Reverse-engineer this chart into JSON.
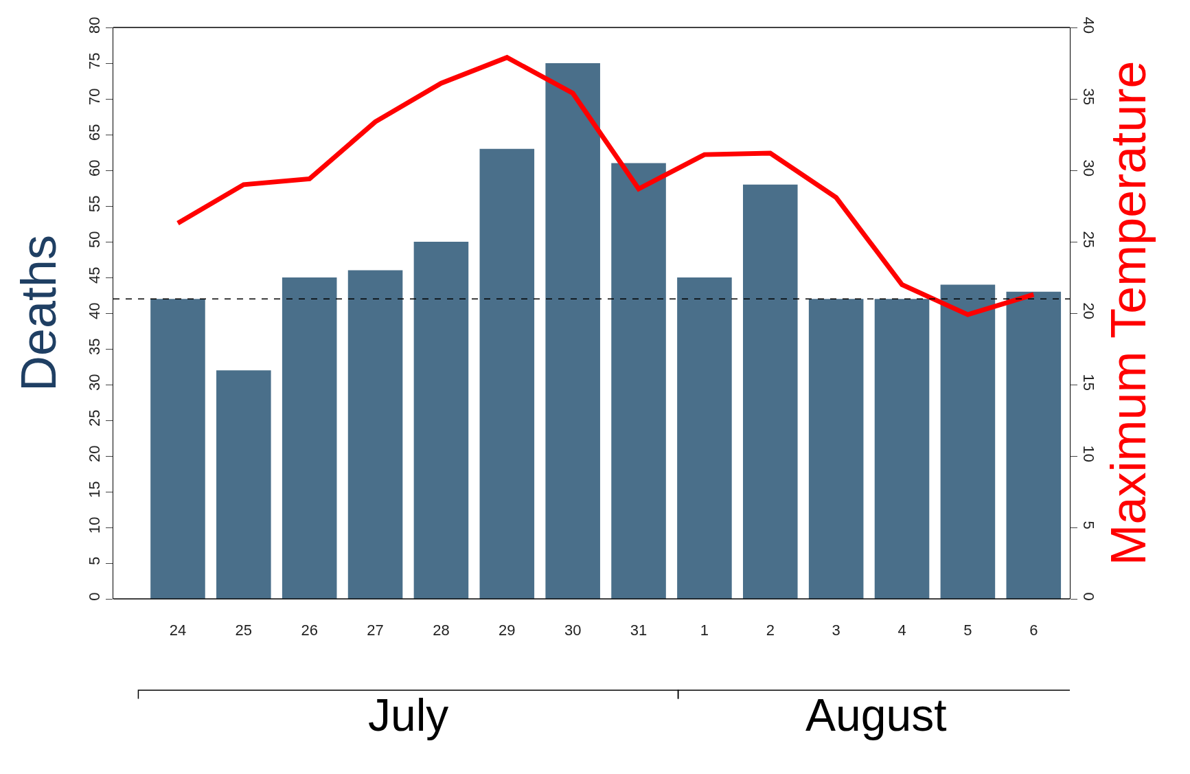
{
  "chart_data": {
    "type": "bar",
    "ylabel": "Deaths",
    "y2label": "Maximum Temperature",
    "categories": [
      "24",
      "25",
      "26",
      "27",
      "28",
      "29",
      "30",
      "31",
      "1",
      "2",
      "3",
      "4",
      "5",
      "6"
    ],
    "series": [
      {
        "color": "#4a6f8a",
        "values": [
          42,
          32,
          45,
          46,
          50,
          63,
          75,
          61,
          45,
          58,
          42,
          42,
          44,
          43
        ]
      },
      {
        "type": "line",
        "axis": "y2",
        "color": "#ff0000",
        "marker": "none",
        "line_style": "solid",
        "values": [
          26.3,
          29.0,
          29.4,
          33.4,
          36.1,
          37.9,
          35.4,
          28.7,
          31.1,
          31.2,
          28.1,
          22.0,
          19.9,
          21.3
        ]
      }
    ],
    "ylim": [
      0,
      80
    ],
    "yticks": [
      0,
      5,
      10,
      15,
      20,
      25,
      30,
      35,
      40,
      45,
      50,
      55,
      60,
      65,
      70,
      75,
      80
    ],
    "y2lim": [
      0,
      40
    ],
    "y2ticks": [
      0,
      5,
      10,
      15,
      20,
      25,
      30,
      35,
      40
    ],
    "ref_lines": [
      {
        "axis": "y",
        "value": 42,
        "line_style": "dashed",
        "color": "#000000"
      }
    ],
    "annotations": [
      "July",
      "August"
    ]
  }
}
